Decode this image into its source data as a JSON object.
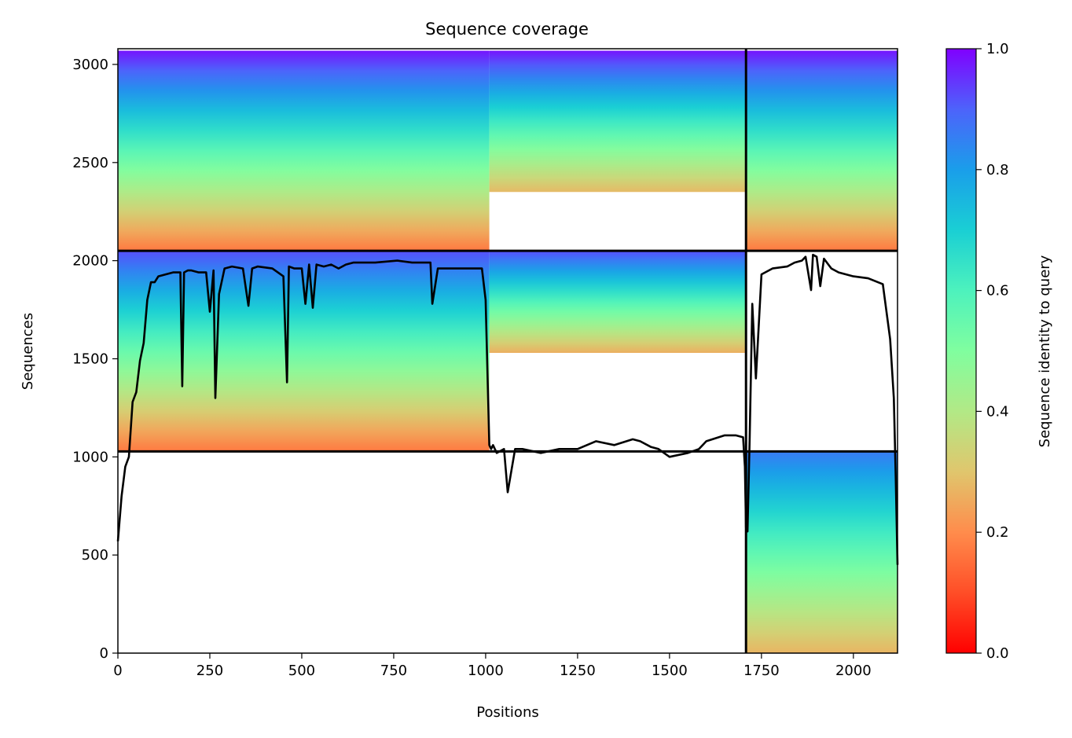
{
  "chart_data": {
    "type": "heatmap",
    "title": "Sequence coverage",
    "xlabel": "Positions",
    "ylabel": "Sequences",
    "xlim": [
      0,
      2120
    ],
    "ylim": [
      0,
      3080
    ],
    "xticks": [
      0,
      250,
      500,
      750,
      1000,
      1250,
      1500,
      1750,
      2000
    ],
    "yticks": [
      0,
      500,
      1000,
      1500,
      2000,
      2500,
      3000
    ],
    "grid": false,
    "colorbar": {
      "label": "Sequence identity to query",
      "range": [
        0.0,
        1.0
      ],
      "ticks": [
        0.0,
        0.2,
        0.4,
        0.6,
        0.8,
        1.0
      ],
      "colormap": "rainbow"
    },
    "chain_boundaries": {
      "x": [
        1708
      ],
      "y": [
        1028,
        2050
      ]
    },
    "blocks": [
      {
        "x": [
          0,
          1010
        ],
        "y": [
          1028,
          2050
        ],
        "identity_bottom": 0.17,
        "identity_top": 0.92
      },
      {
        "x": [
          1010,
          1708
        ],
        "y": [
          1530,
          2050
        ],
        "identity_bottom": 0.26,
        "identity_top": 0.92
      },
      {
        "x": [
          0,
          1010
        ],
        "y": [
          2050,
          3070
        ],
        "identity_bottom": 0.17,
        "identity_top": 0.98
      },
      {
        "x": [
          1010,
          1708
        ],
        "y": [
          2350,
          3070
        ],
        "identity_bottom": 0.28,
        "identity_top": 0.98
      },
      {
        "x": [
          1710,
          2120
        ],
        "y": [
          2050,
          3070
        ],
        "identity_bottom": 0.17,
        "identity_top": 0.98
      },
      {
        "x": [
          1710,
          2120
        ],
        "y": [
          0,
          1028
        ],
        "identity_bottom": 0.27,
        "identity_top": 0.86
      }
    ],
    "series": [
      {
        "type": "line",
        "color": "#000000",
        "x": [
          0,
          10,
          20,
          30,
          40,
          50,
          60,
          70,
          80,
          90,
          100,
          110,
          130,
          150,
          170,
          175,
          180,
          190,
          200,
          220,
          240,
          250,
          260,
          265,
          275,
          290,
          310,
          340,
          355,
          365,
          380,
          420,
          450,
          460,
          465,
          480,
          500,
          510,
          520,
          530,
          540,
          560,
          580,
          600,
          620,
          640,
          700,
          760,
          800,
          850,
          855,
          870,
          900,
          950,
          990,
          1000,
          1010,
          1015,
          1020,
          1030,
          1050,
          1060,
          1080,
          1100,
          1150,
          1200,
          1250,
          1300,
          1350,
          1400,
          1420,
          1450,
          1470,
          1500,
          1550,
          1580,
          1600,
          1650,
          1680,
          1700,
          1705,
          1708,
          1712,
          1718,
          1725,
          1735,
          1750,
          1780,
          1820,
          1840,
          1860,
          1870,
          1885,
          1890,
          1900,
          1910,
          1920,
          1940,
          1960,
          2000,
          2040,
          2080,
          2100,
          2110,
          2115,
          2120
        ],
        "values": [
          570,
          800,
          950,
          1000,
          1280,
          1330,
          1490,
          1580,
          1800,
          1890,
          1890,
          1920,
          1930,
          1940,
          1940,
          1360,
          1940,
          1950,
          1950,
          1940,
          1940,
          1740,
          1950,
          1300,
          1830,
          1960,
          1970,
          1960,
          1770,
          1960,
          1970,
          1960,
          1920,
          1380,
          1970,
          1960,
          1960,
          1780,
          1980,
          1760,
          1980,
          1970,
          1980,
          1960,
          1980,
          1990,
          1990,
          2000,
          1990,
          1990,
          1780,
          1960,
          1960,
          1960,
          1960,
          1800,
          1060,
          1040,
          1060,
          1020,
          1040,
          820,
          1040,
          1040,
          1020,
          1040,
          1040,
          1080,
          1060,
          1090,
          1080,
          1050,
          1040,
          1000,
          1020,
          1040,
          1080,
          1110,
          1110,
          1100,
          950,
          640,
          620,
          1100,
          1780,
          1400,
          1930,
          1960,
          1970,
          1990,
          2000,
          2020,
          1850,
          2030,
          2020,
          1870,
          2010,
          1960,
          1940,
          1920,
          1910,
          1880,
          1600,
          1300,
          900,
          450
        ]
      }
    ]
  }
}
